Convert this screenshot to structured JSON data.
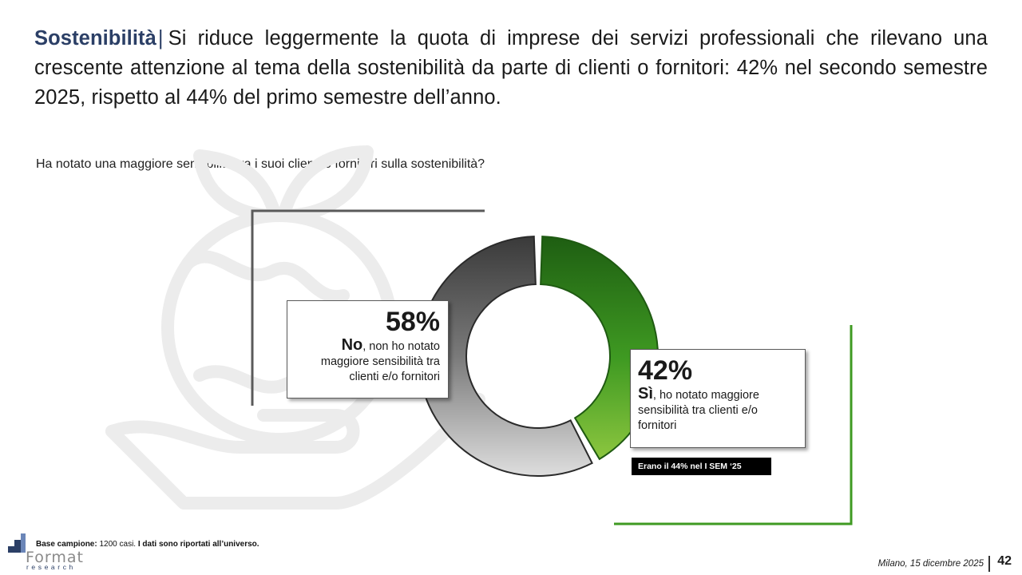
{
  "header": {
    "topic": "Sostenibilità",
    "separator": "|",
    "text": "Si riduce leggermente la quota di imprese dei servizi professionali che rilevano una crescente attenzione al tema della sostenibilità da parte di clienti o fornitori: 42% nel secondo semestre 2025, rispetto al 44% del primo semestre dell’anno."
  },
  "question": "Ha notato una maggiore sensibilità tra i suoi clienti o fornitori sulla sostenibilità?",
  "chart_data": {
    "type": "pie",
    "variant": "donut",
    "title": "Ha notato una maggiore sensibilità tra i suoi clienti o fornitori sulla sostenibilità?",
    "categories": [
      "Sì, ho notato maggiore sensibilità tra clienti e/o fornitori",
      "No, non ho notato maggiore sensibilità tra clienti e/o fornitori"
    ],
    "values": [
      42,
      58
    ],
    "unit": "%",
    "colors": [
      "#2e7d1a",
      "#4a4a4a"
    ],
    "labels": {
      "yes": {
        "value": "42%",
        "lead": "Sì",
        "rest": ", ho notato maggiore sensibilità tra clienti e/o fornitori"
      },
      "no": {
        "value": "58%",
        "lead": "No",
        "rest": ", non ho notato maggiore sensibilità tra clienti e/o fornitori"
      }
    },
    "annotation": "Erano il 44% nel I SEM ‘25"
  },
  "footer": {
    "base_label": "Base campione:",
    "base_value": "1200 casi.",
    "note": "I dati sono riportati all’universo.",
    "logo_word": "Format",
    "logo_sub": "research",
    "date": "Milano, 15 dicembre 2025",
    "page": "42"
  }
}
